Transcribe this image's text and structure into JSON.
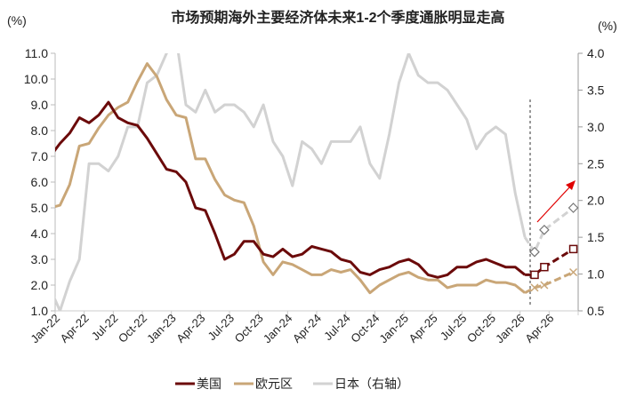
{
  "chart_data": {
    "type": "line",
    "title": "市场预期海外主要经济体未来1-2个季度通胀明显走高",
    "ylabel_left": "(%)",
    "ylabel_right": "(%)",
    "ylim_left": [
      1.0,
      11.0
    ],
    "ylim_right": [
      0.5,
      4.0
    ],
    "yticks_left": [
      "1.0",
      "2.0",
      "3.0",
      "4.0",
      "5.0",
      "6.0",
      "7.0",
      "8.0",
      "9.0",
      "10.0",
      "11.0"
    ],
    "yticks_right": [
      "0.5",
      "1.0",
      "1.5",
      "2.0",
      "2.5",
      "3.0",
      "3.5",
      "4.0"
    ],
    "xlim": [
      "Jan-22",
      "Jul-26"
    ],
    "xtick_labels": [
      "Jan-22",
      "Apr-22",
      "Jul-22",
      "Oct-22",
      "Jan-23",
      "Apr-23",
      "Jul-23",
      "Oct-23",
      "Jan-24",
      "Apr-24",
      "Jul-24",
      "Oct-24",
      "Jan-25",
      "Apr-25",
      "Jul-25",
      "Oct-25",
      "Jan-26",
      "Apr-26"
    ],
    "grid": false,
    "legend_placement": "bottom",
    "forecast_divider": "Feb-26",
    "actual_start": "Dec-21",
    "series": [
      {
        "name": "美国",
        "axis": "left",
        "color": "#6b0a0a",
        "values": [
          7.0,
          7.5,
          7.9,
          8.5,
          8.3,
          8.6,
          9.1,
          8.5,
          8.3,
          8.2,
          7.7,
          7.1,
          6.5,
          6.4,
          6.0,
          5.0,
          4.9,
          4.0,
          3.0,
          3.2,
          3.7,
          3.7,
          3.2,
          3.1,
          3.4,
          3.1,
          3.2,
          3.5,
          3.4,
          3.3,
          3.0,
          2.9,
          2.5,
          2.4,
          2.6,
          2.7,
          2.9,
          3.0,
          2.8,
          2.4,
          2.3,
          2.4,
          2.7,
          2.7,
          2.9,
          3.0,
          2.85,
          2.7,
          2.7,
          2.4
        ],
        "forecast": {
          "dates": [
            "Feb-26",
            "Mar-26",
            "Jun-26"
          ],
          "values": [
            2.4,
            2.7,
            3.4
          ],
          "marker": "square"
        }
      },
      {
        "name": "欧元区",
        "axis": "left",
        "color": "#c9a677",
        "values": [
          5.0,
          5.1,
          5.9,
          7.4,
          7.5,
          8.1,
          8.6,
          8.9,
          9.1,
          9.9,
          10.6,
          10.1,
          9.2,
          8.6,
          8.5,
          6.9,
          6.9,
          6.1,
          5.5,
          5.3,
          5.2,
          4.3,
          2.9,
          2.4,
          2.9,
          2.8,
          2.6,
          2.4,
          2.4,
          2.6,
          2.5,
          2.6,
          2.2,
          1.7,
          2.0,
          2.2,
          2.4,
          2.5,
          2.3,
          2.2,
          2.2,
          1.9,
          2.0,
          2.0,
          2.0,
          2.2,
          2.1,
          2.1,
          2.0,
          1.7
        ],
        "forecast": {
          "dates": [
            "Feb-26",
            "Mar-26",
            "Jun-26"
          ],
          "values": [
            1.9,
            2.0,
            2.5
          ],
          "marker": "x"
        }
      },
      {
        "name": "日本（右轴）",
        "axis": "right",
        "color": "#d2d2d2",
        "values": [
          0.8,
          0.5,
          0.9,
          1.2,
          2.5,
          2.5,
          2.4,
          2.6,
          3.0,
          3.0,
          3.6,
          3.7,
          4.0,
          4.2,
          3.3,
          3.2,
          3.5,
          3.2,
          3.3,
          3.3,
          3.2,
          3.0,
          3.3,
          2.8,
          2.6,
          2.2,
          2.8,
          2.7,
          2.5,
          2.8,
          2.8,
          2.8,
          3.0,
          2.5,
          2.3,
          2.9,
          3.6,
          4.0,
          3.7,
          3.6,
          3.6,
          3.5,
          3.3,
          3.1,
          2.7,
          2.9,
          3.0,
          2.9,
          2.1,
          1.5
        ],
        "forecast": {
          "dates": [
            "Feb-26",
            "Mar-26",
            "Jun-26"
          ],
          "values": [
            1.3,
            1.6,
            1.9
          ],
          "marker": "diamond"
        }
      }
    ],
    "annotation_arrow_color": "#e00000"
  }
}
